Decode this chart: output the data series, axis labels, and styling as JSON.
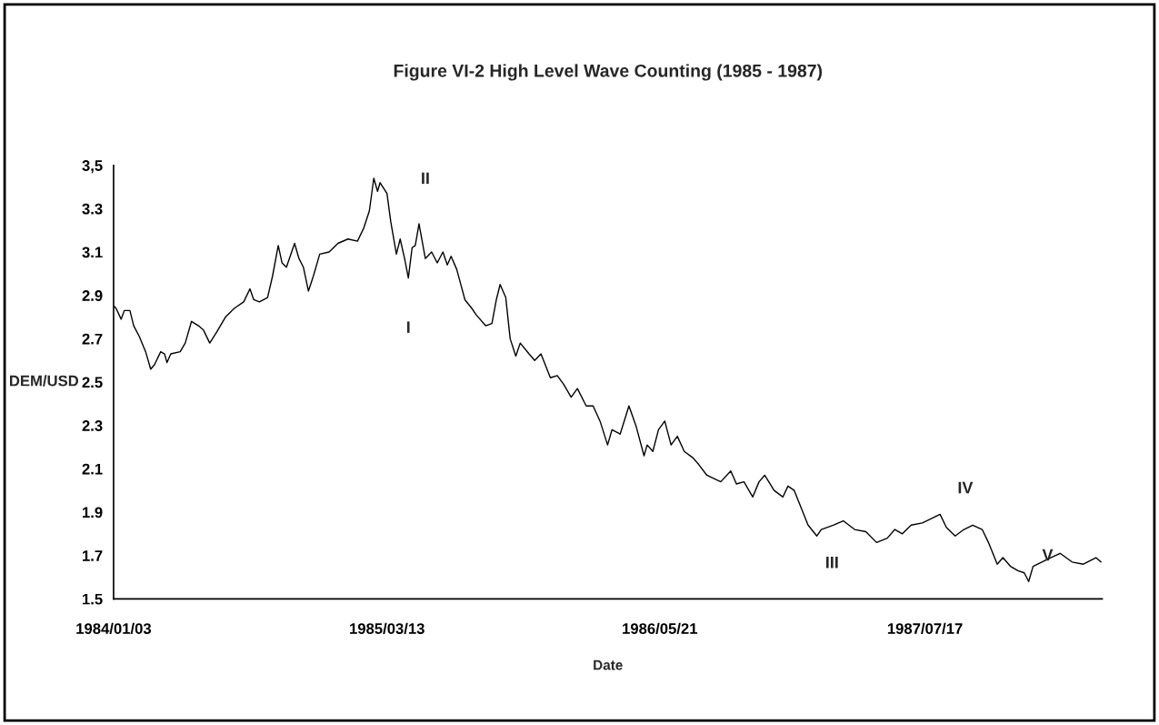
{
  "chart_data": {
    "type": "line",
    "title": "Figure VI-2 High Level Wave Counting (1985 - 1987)",
    "xlabel": "Date",
    "ylabel": "DEM/USD",
    "x": [
      "1984-01-04",
      "1984-01-07",
      "1984-01-15",
      "1984-01-20",
      "1984-01-29",
      "1984-02-04",
      "1984-02-13",
      "1984-02-23",
      "1984-03-02",
      "1984-03-08",
      "1984-03-18",
      "1984-03-24",
      "1984-03-28",
      "1984-04-03",
      "1984-04-18",
      "1984-04-26",
      "1984-05-06",
      "1984-05-17",
      "1984-05-25",
      "1984-06-04",
      "1984-06-15",
      "1984-06-29",
      "1984-07-13",
      "1984-07-28",
      "1984-08-07",
      "1984-08-13",
      "1984-08-22",
      "1984-09-04",
      "1984-09-12",
      "1984-09-21",
      "1984-09-27",
      "1984-10-04",
      "1984-10-17",
      "1984-10-24",
      "1984-10-31",
      "1984-11-08",
      "1984-11-16",
      "1984-11-26",
      "1984-12-11",
      "1984-12-25",
      "1985-01-10",
      "1985-01-25",
      "1985-02-04",
      "1985-02-13",
      "1985-02-20",
      "1985-02-26",
      "1985-03-02",
      "1985-03-13",
      "1985-03-19",
      "1985-03-28",
      "1985-04-03",
      "1985-04-10",
      "1985-04-16",
      "1985-04-22",
      "1985-04-27",
      "1985-05-03",
      "1985-05-13",
      "1985-05-23",
      "1985-06-01",
      "1985-06-10",
      "1985-06-17",
      "1985-06-23",
      "1985-07-02",
      "1985-07-15",
      "1985-07-26",
      "1985-08-02",
      "1985-08-17",
      "1985-08-27",
      "1985-09-03",
      "1985-09-09",
      "1985-09-18",
      "1985-09-25",
      "1985-10-04",
      "1985-10-11",
      "1985-10-25",
      "1985-11-03",
      "1985-11-13",
      "1985-11-28",
      "1985-12-09",
      "1985-12-19",
      "1985-12-31",
      "1986-01-10",
      "1986-01-24",
      "1986-02-04",
      "1986-02-15",
      "1986-02-27",
      "1986-03-06",
      "1986-03-19",
      "1986-04-02",
      "1986-04-13",
      "1986-04-26",
      "1986-05-01",
      "1986-05-10",
      "1986-05-19",
      "1986-05-29",
      "1986-06-08",
      "1986-06-18",
      "1986-06-29",
      "1986-07-13",
      "1986-07-22",
      "1986-08-04",
      "1986-08-26",
      "1986-09-11",
      "1986-09-20",
      "1986-10-02",
      "1986-10-16",
      "1986-10-26",
      "1986-11-04",
      "1986-11-19",
      "1986-12-03",
      "1986-12-11",
      "1986-12-21",
      "1987-01-01",
      "1987-01-12",
      "1987-01-26",
      "1987-02-02",
      "1987-02-21",
      "1987-03-09",
      "1987-03-27",
      "1987-04-14",
      "1987-05-01",
      "1987-05-18",
      "1987-05-30",
      "1987-06-11",
      "1987-06-25",
      "1987-07-13",
      "1987-07-27",
      "1987-08-10",
      "1987-08-20",
      "1987-09-03",
      "1987-09-17",
      "1987-10-01",
      "1987-10-16",
      "1987-10-26",
      "1987-11-09",
      "1987-11-18",
      "1987-11-30",
      "1987-12-12",
      "1987-12-22",
      "1987-12-29",
      "1988-01-05",
      "1988-01-19",
      "1988-02-02",
      "1988-02-17",
      "1988-03-07",
      "1988-03-25",
      "1988-04-14",
      "1988-04-22"
    ],
    "series": [
      {
        "color": "#000000",
        "values": [
          2.85,
          2.84,
          2.79,
          2.83,
          2.83,
          2.76,
          2.71,
          2.64,
          2.56,
          2.58,
          2.64,
          2.63,
          2.59,
          2.63,
          2.64,
          2.68,
          2.78,
          2.76,
          2.74,
          2.68,
          2.73,
          2.8,
          2.84,
          2.87,
          2.93,
          2.88,
          2.87,
          2.89,
          2.99,
          3.13,
          3.05,
          3.03,
          3.14,
          3.07,
          3.03,
          2.92,
          2.99,
          3.09,
          3.1,
          3.14,
          3.16,
          3.15,
          3.21,
          3.29,
          3.44,
          3.38,
          3.42,
          3.37,
          3.24,
          3.09,
          3.16,
          3.07,
          2.98,
          3.12,
          3.13,
          3.23,
          3.07,
          3.1,
          3.05,
          3.1,
          3.04,
          3.08,
          3.02,
          2.88,
          2.84,
          2.81,
          2.76,
          2.77,
          2.88,
          2.95,
          2.89,
          2.7,
          2.62,
          2.68,
          2.63,
          2.6,
          2.63,
          2.52,
          2.53,
          2.49,
          2.43,
          2.47,
          2.39,
          2.39,
          2.32,
          2.21,
          2.28,
          2.26,
          2.39,
          2.3,
          2.16,
          2.21,
          2.18,
          2.28,
          2.32,
          2.21,
          2.25,
          2.18,
          2.15,
          2.12,
          2.07,
          2.04,
          2.09,
          2.03,
          2.04,
          1.97,
          2.04,
          2.07,
          2.0,
          1.97,
          2.02,
          2.0,
          1.92,
          1.84,
          1.79,
          1.82,
          1.84,
          1.86,
          1.82,
          1.81,
          1.76,
          1.78,
          1.82,
          1.8,
          1.84,
          1.85,
          1.87,
          1.89,
          1.83,
          1.79,
          1.82,
          1.84,
          1.82,
          1.76,
          1.66,
          1.69,
          1.65,
          1.63,
          1.62,
          1.58,
          1.65,
          1.67,
          1.69,
          1.71,
          1.67,
          1.66,
          1.69,
          1.67
        ]
      }
    ],
    "xlim": [
      "1984-01-03",
      "1988-04-24"
    ],
    "xticks": [
      {
        "value": "1984-01-03",
        "label": "1984/01/03"
      },
      {
        "value": "1985-03-13",
        "label": "1985/03/13"
      },
      {
        "value": "1986-05-21",
        "label": "1986/05/21"
      },
      {
        "value": "1987-07-17",
        "label": "1987/07/17"
      }
    ],
    "ylim": [
      1.5,
      3.5
    ],
    "yticks": [
      1.5,
      1.7,
      1.9,
      2.1,
      2.3,
      2.5,
      2.7,
      2.9,
      3.1,
      3.3,
      {
        "value": 3.5,
        "label": "3,5"
      }
    ],
    "grid": false,
    "legend": false,
    "marker": "none",
    "line_style": "solid",
    "annotations": [
      {
        "text": "I",
        "x": "1985-04-16",
        "y": 2.98
      },
      {
        "text": "II",
        "x": "1985-05-03",
        "y": 3.23
      },
      {
        "text": "III",
        "x": "1987-01-26",
        "y": 1.79
      },
      {
        "text": "IV",
        "x": "1987-08-10",
        "y": 1.89
      },
      {
        "text": "V",
        "x": "1987-12-29",
        "y": 1.58
      }
    ]
  }
}
